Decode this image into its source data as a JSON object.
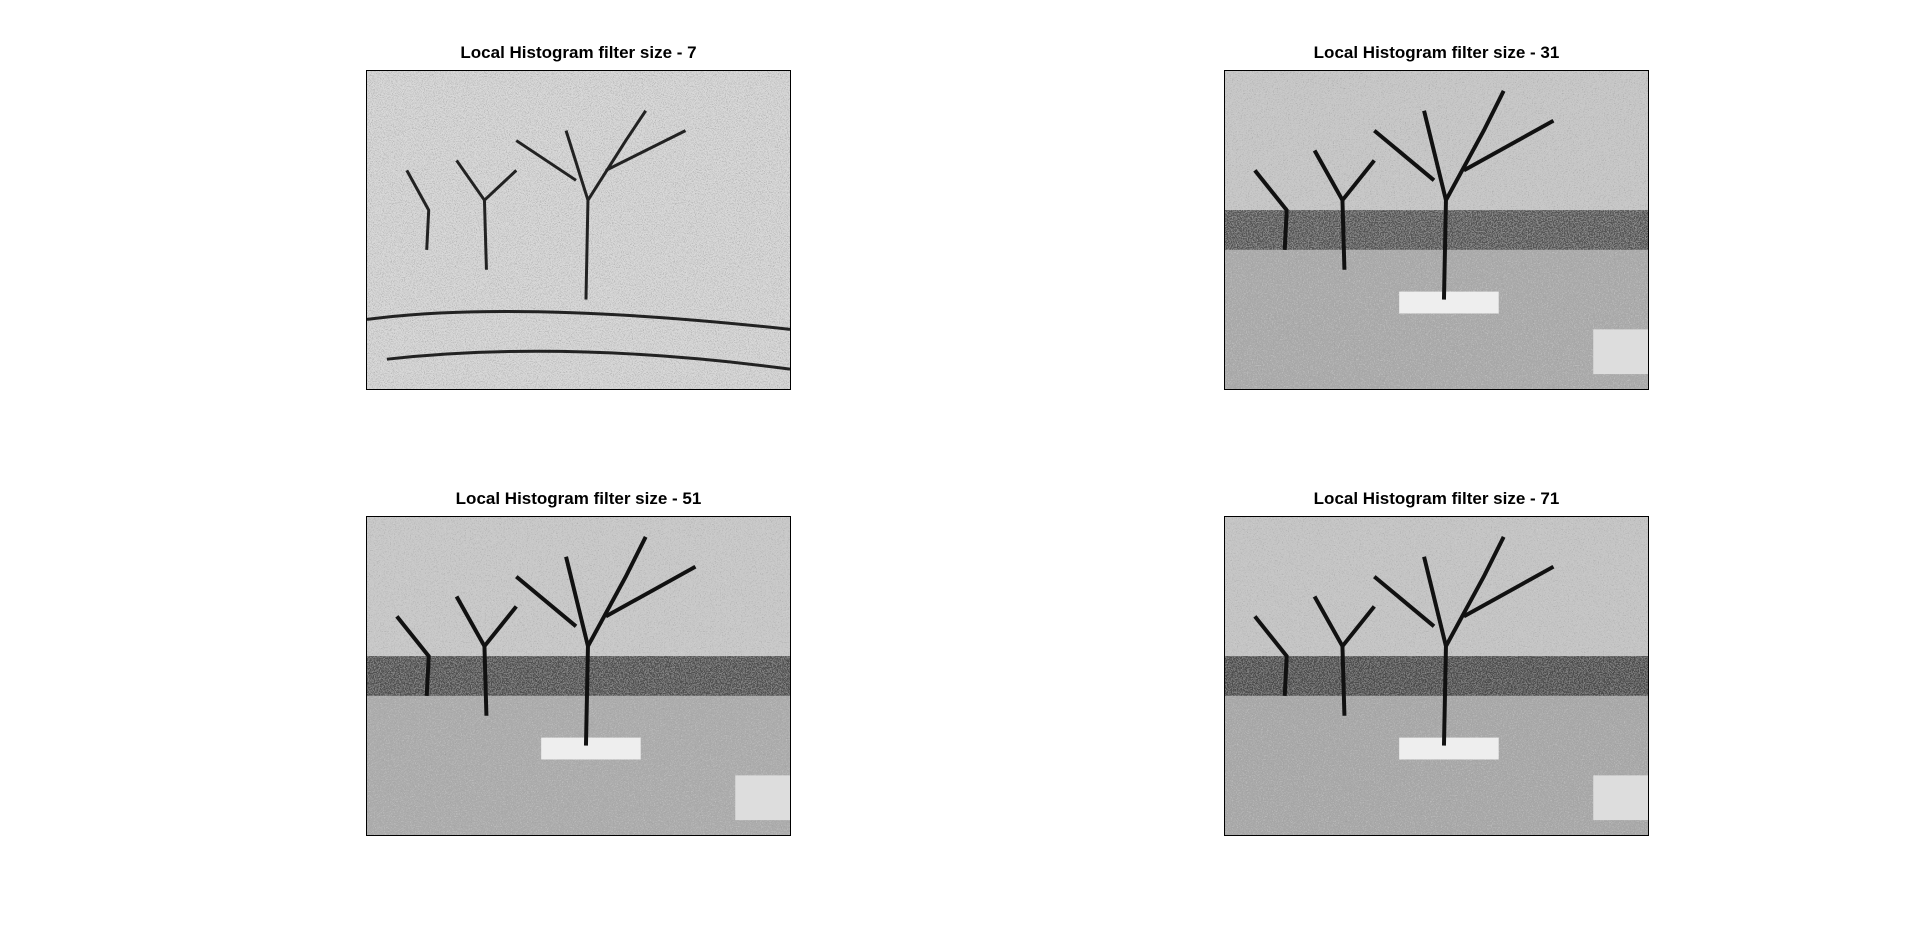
{
  "panels": [
    {
      "title": "Local Histogram filter size - 7",
      "icon": "tree-photo-icon"
    },
    {
      "title": "Local Histogram filter size - 31",
      "icon": "tree-photo-icon"
    },
    {
      "title": "Local Histogram filter size - 51",
      "icon": "tree-photo-icon"
    },
    {
      "title": "Local Histogram filter size - 71",
      "icon": "tree-photo-icon"
    }
  ],
  "colors": {
    "background": "#ffffff",
    "image_dark": "#1a1a1a",
    "image_light": "#e8e8e8"
  }
}
